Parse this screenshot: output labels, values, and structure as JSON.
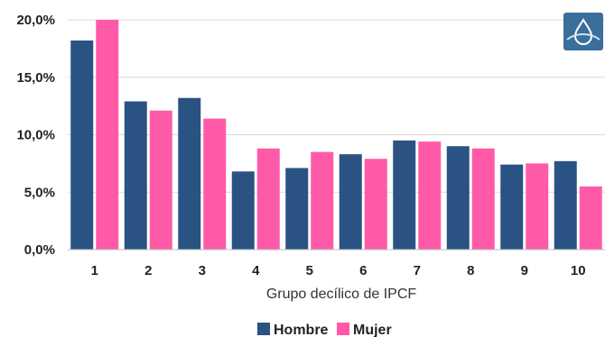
{
  "chart_data": {
    "type": "bar",
    "categories": [
      "1",
      "2",
      "3",
      "4",
      "5",
      "6",
      "7",
      "8",
      "9",
      "10"
    ],
    "series": [
      {
        "name": "Hombre",
        "values": [
          18.2,
          12.9,
          13.2,
          6.8,
          7.1,
          8.3,
          9.5,
          9.0,
          7.4,
          7.7
        ]
      },
      {
        "name": "Mujer",
        "values": [
          20.0,
          12.1,
          11.4,
          8.8,
          8.5,
          7.9,
          9.4,
          8.8,
          7.5,
          5.5
        ]
      }
    ],
    "xlabel": "Grupo decílico de IPCF",
    "ylabel": "",
    "ylim": [
      0,
      20
    ],
    "yticks": [
      "0,0%",
      "5,0%",
      "10,0%",
      "15,0%",
      "20,0%"
    ],
    "grid": true,
    "legend_position": "bottom"
  },
  "colors": {
    "Hombre": "#2a5384",
    "Mujer": "#ff5aa8",
    "logo_bg": "#3a6f9c"
  },
  "logo": {
    "icon": "water-drop-logo-icon"
  }
}
